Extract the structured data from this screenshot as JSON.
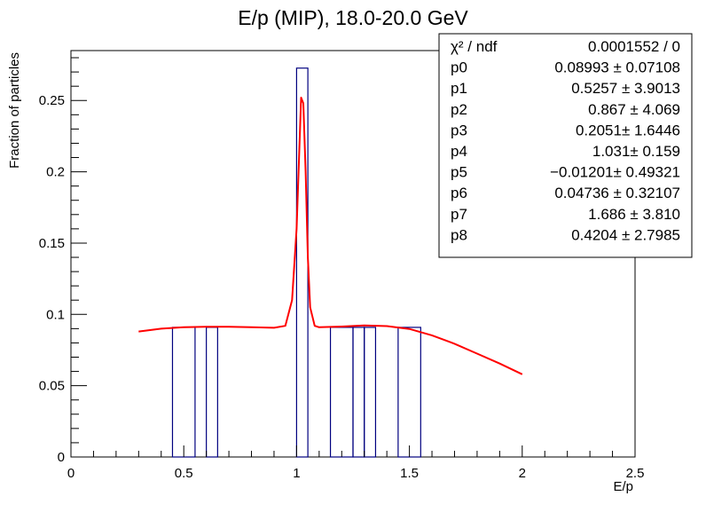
{
  "chart_data": {
    "type": "histogram-with-fit",
    "title": "E/p (MIP), 18.0-20.0 GeV",
    "xlabel": "E/p",
    "ylabel": "Fraction of particles",
    "xlim": [
      0,
      2.5
    ],
    "ylim": [
      0,
      0.285
    ],
    "x_ticks": [
      {
        "value": 0,
        "label": "0"
      },
      {
        "value": 0.5,
        "label": "0.5"
      },
      {
        "value": 1,
        "label": "1"
      },
      {
        "value": 1.5,
        "label": "1.5"
      },
      {
        "value": 2,
        "label": "2"
      },
      {
        "value": 2.5,
        "label": "2.5"
      }
    ],
    "y_ticks": [
      {
        "value": 0,
        "label": "0"
      },
      {
        "value": 0.05,
        "label": "0.05"
      },
      {
        "value": 0.1,
        "label": "0.1"
      },
      {
        "value": 0.15,
        "label": "0.15"
      },
      {
        "value": 0.2,
        "label": "0.2"
      },
      {
        "value": 0.25,
        "label": "0.25"
      }
    ],
    "histogram": {
      "color": "#00007f",
      "bins": [
        {
          "low": 0.45,
          "high": 0.55,
          "value": 0.0909
        },
        {
          "low": 0.6,
          "high": 0.65,
          "value": 0.0909
        },
        {
          "low": 1.0,
          "high": 1.05,
          "value": 0.2727
        },
        {
          "low": 1.15,
          "high": 1.25,
          "value": 0.0909
        },
        {
          "low": 1.25,
          "high": 1.3,
          "value": 0.0909
        },
        {
          "low": 1.3,
          "high": 1.35,
          "value": 0.0909
        },
        {
          "low": 1.45,
          "high": 1.55,
          "value": 0.0909
        }
      ]
    },
    "fit": {
      "color": "#ff0000",
      "x": [
        0.3,
        0.4,
        0.5,
        0.6,
        0.7,
        0.8,
        0.9,
        0.95,
        0.98,
        1.0,
        1.01,
        1.02,
        1.03,
        1.04,
        1.05,
        1.06,
        1.08,
        1.1,
        1.2,
        1.3,
        1.4,
        1.5,
        1.6,
        1.7,
        1.8,
        1.9,
        2.0
      ],
      "y": [
        0.088,
        0.09,
        0.091,
        0.0913,
        0.0913,
        0.091,
        0.0906,
        0.092,
        0.11,
        0.16,
        0.205,
        0.252,
        0.248,
        0.2,
        0.14,
        0.105,
        0.092,
        0.091,
        0.0915,
        0.0922,
        0.0918,
        0.0898,
        0.0853,
        0.0794,
        0.0725,
        0.0655,
        0.058
      ]
    },
    "stats": [
      {
        "name": "χ² / ndf",
        "value": "0.0001552 / 0"
      },
      {
        "name": "p0",
        "value": "0.08993 ± 0.07108"
      },
      {
        "name": "p1",
        "value": "0.5257 ± 3.9013"
      },
      {
        "name": "p2",
        "value": "0.867 ± 4.069"
      },
      {
        "name": "p3",
        "value": "0.2051± 1.6446"
      },
      {
        "name": "p4",
        "value": "1.031± 0.159"
      },
      {
        "name": "p5",
        "value": "−0.01201± 0.49321"
      },
      {
        "name": "p6",
        "value": "0.04736 ± 0.32107"
      },
      {
        "name": "p7",
        "value": "1.686 ± 3.810"
      },
      {
        "name": "p8",
        "value": "0.4204 ± 2.7985"
      }
    ]
  }
}
